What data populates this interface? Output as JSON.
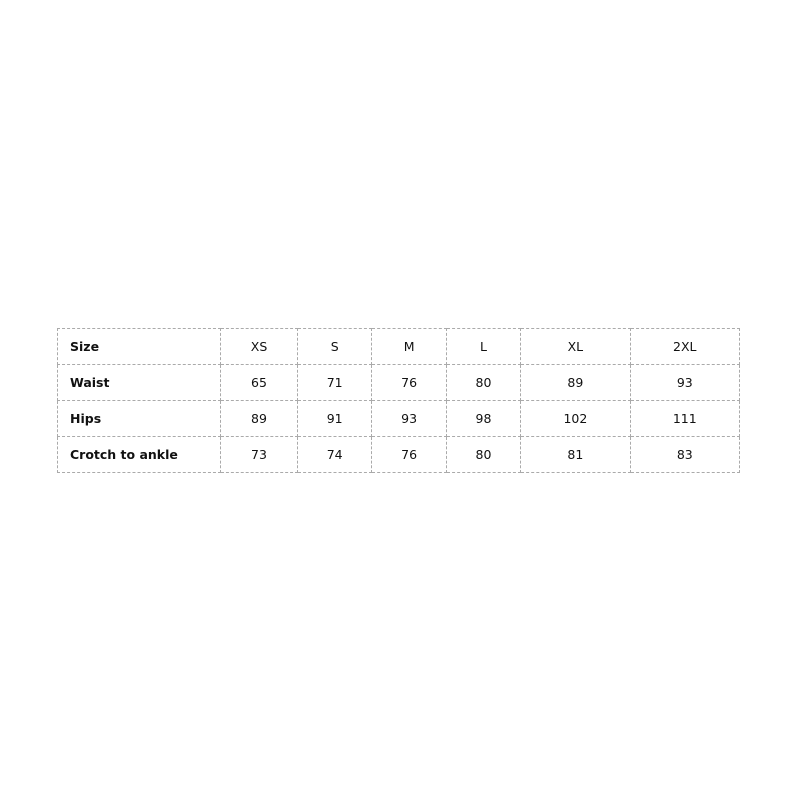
{
  "table": {
    "header": [
      "Size",
      "XS",
      "S",
      "M",
      "L",
      "XL",
      "2XL"
    ],
    "rows": [
      [
        "Waist",
        65,
        71,
        76,
        80,
        89,
        93
      ],
      [
        "Hips",
        89,
        91,
        93,
        98,
        102,
        111
      ],
      [
        "Crotch to ankle",
        73,
        74,
        76,
        80,
        81,
        83
      ]
    ]
  }
}
